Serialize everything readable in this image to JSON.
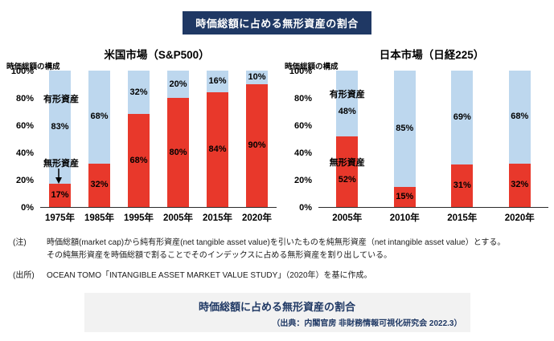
{
  "header": {
    "title": "時価総額に占める無形資産の割合"
  },
  "colors": {
    "navy": "#1f3864",
    "intangible_red": "#e8382b",
    "tangible_blue": "#bdd7ee",
    "caption_bg": "#f2f2f2"
  },
  "chart_data": [
    {
      "type": "bar",
      "stacked": true,
      "title": "米国市場（S&P500）",
      "ylabel": "時価総額の構成",
      "unit": "%",
      "ylim": [
        0,
        100
      ],
      "yticks": [
        "100%",
        "80%",
        "60%",
        "40%",
        "20%",
        "0%"
      ],
      "categories": [
        "1975年",
        "1985年",
        "1995年",
        "2005年",
        "2015年",
        "2020年"
      ],
      "series": [
        {
          "name": "無形資産",
          "color": "#e8382b",
          "values": [
            17,
            32,
            68,
            80,
            84,
            90
          ]
        },
        {
          "name": "有形資産",
          "color": "#bdd7ee",
          "values": [
            83,
            68,
            32,
            20,
            16,
            10
          ]
        }
      ],
      "annotations": [
        {
          "text": "有形資産",
          "target": "tangible-segment"
        },
        {
          "text": "無形資産",
          "target": "intangible-segment-1975"
        }
      ],
      "grid": false,
      "legend_position": "none"
    },
    {
      "type": "bar",
      "stacked": true,
      "title": "日本市場（日経225）",
      "ylabel": "時価総額の構成",
      "unit": "%",
      "ylim": [
        0,
        100
      ],
      "yticks": [
        "100%",
        "80%",
        "60%",
        "40%",
        "20%",
        "0%"
      ],
      "categories": [
        "2005年",
        "2010年",
        "2015年",
        "2020年"
      ],
      "series": [
        {
          "name": "無形資産",
          "color": "#e8382b",
          "values": [
            52,
            15,
            31,
            32
          ]
        },
        {
          "name": "有形資産",
          "color": "#bdd7ee",
          "values": [
            48,
            85,
            69,
            68
          ]
        }
      ],
      "first_bar_series_labels": true,
      "grid": false,
      "legend_position": "none"
    }
  ],
  "notes": {
    "note_label": "(注)",
    "note_lines": [
      "時価総額(market cap)から純有形資産(net tangible asset value)を引いたものを純無形資産（net intangible asset value）とする。",
      "その純無形資産を時価総額で割ることでそのインデックスに占める無形資産を割り出している。"
    ],
    "source_label": "(出所)",
    "source_text": "OCEAN TOMO「INTANGIBLE ASSET MARKET VALUE STUDY」（2020年）を基に作成。"
  },
  "caption_box": {
    "title": "時価総額に占める無形資産の割合",
    "source": "（出典：内閣官房 非財務情報可視化研究会 2022.3）"
  }
}
